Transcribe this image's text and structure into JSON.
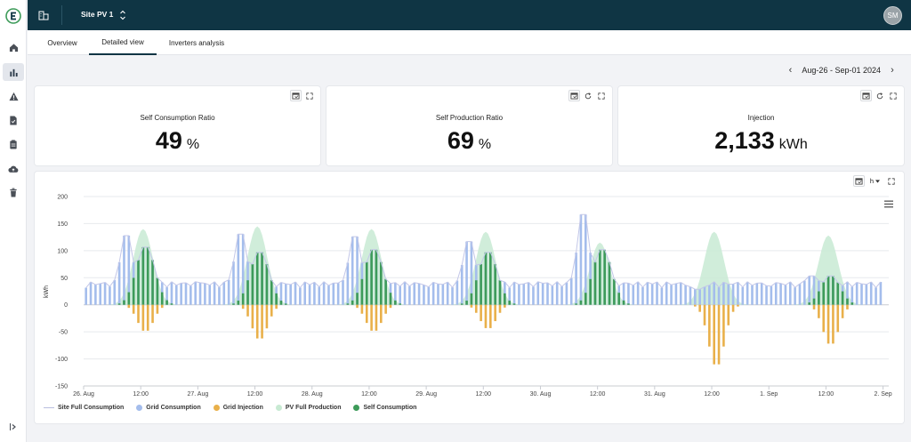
{
  "app": {
    "site_name": "Site PV 1",
    "user_initials": "SM",
    "colors": {
      "topbar": "#0f3544",
      "grid_consumption": "#a4bdec",
      "grid_injection": "#e9b04a",
      "pv_full_production": "#c8ead3",
      "self_consumption": "#3d9b59",
      "site_full_consumption": "#c3c7e8"
    }
  },
  "sidebar": {
    "items": [
      {
        "icon": "home-icon",
        "active": false
      },
      {
        "icon": "bar-chart-icon",
        "active": true
      },
      {
        "icon": "warning-icon",
        "active": false
      },
      {
        "icon": "report-icon",
        "active": false
      },
      {
        "icon": "clipboard-icon",
        "active": false
      },
      {
        "icon": "cloud-upload-icon",
        "active": false
      },
      {
        "icon": "trash-icon",
        "active": false
      }
    ]
  },
  "tabs": [
    "Overview",
    "Detailed view",
    "Inverters analysis"
  ],
  "active_tab": "Detailed view",
  "date_range": {
    "label": "Aug-26 - Sep-01 2024"
  },
  "kpis": [
    {
      "title": "Self Consumption Ratio",
      "value": "49",
      "unit": "%"
    },
    {
      "title": "Self Production Ratio",
      "value": "69",
      "unit": "%"
    },
    {
      "title": "Injection",
      "value": "2,133",
      "unit": "kWh"
    }
  ],
  "chart": {
    "resolution": "h",
    "legend": [
      "Site Full Consumption",
      "Grid Consumption",
      "Grid Injection",
      "PV Full Production",
      "Self Consumption"
    ]
  },
  "chart_data": {
    "type": "bar",
    "ylabel": "kWh",
    "ylim": [
      -150,
      200
    ],
    "yticks": [
      200,
      150,
      100,
      50,
      0,
      -50,
      -100,
      -150
    ],
    "xticks": [
      "26. Aug",
      "12:00",
      "27. Aug",
      "12:00",
      "28. Aug",
      "12:00",
      "29. Aug",
      "12:00",
      "30. Aug",
      "12:00",
      "31. Aug",
      "12:00",
      "1. Sep",
      "12:00",
      "2. Sep"
    ],
    "legend_position": "bottom-left",
    "grid": true,
    "series": [
      {
        "name": "Site Full Consumption",
        "kind": "line"
      },
      {
        "name": "Grid Consumption",
        "kind": "bar",
        "baseline_kwh": 37
      },
      {
        "name": "Grid Injection",
        "kind": "bar"
      },
      {
        "name": "PV Full Production",
        "kind": "area"
      },
      {
        "name": "Self Consumption",
        "kind": "bar"
      }
    ],
    "days": [
      {
        "label": "26. Aug",
        "pv_peak": 140,
        "self_peak": 110,
        "grid_peak": 137,
        "inj_peak": -50
      },
      {
        "label": "27. Aug",
        "pv_peak": 145,
        "self_peak": 100,
        "grid_peak": 140,
        "inj_peak": -65
      },
      {
        "label": "28. Aug",
        "pv_peak": 140,
        "self_peak": 105,
        "grid_peak": 135,
        "inj_peak": -50
      },
      {
        "label": "29. Aug",
        "pv_peak": 135,
        "self_peak": 100,
        "grid_peak": 125,
        "inj_peak": -45
      },
      {
        "label": "30. Aug",
        "pv_peak": 115,
        "self_peak": 105,
        "grid_peak": 180,
        "inj_peak": 0
      },
      {
        "label": "31. Aug",
        "pv_peak": 135,
        "self_peak": 0,
        "grid_peak": 28,
        "inj_peak": -115
      },
      {
        "label": "1. Sep",
        "pv_peak": 128,
        "self_peak": 55,
        "grid_peak": 55,
        "inj_peak": -75
      }
    ]
  }
}
